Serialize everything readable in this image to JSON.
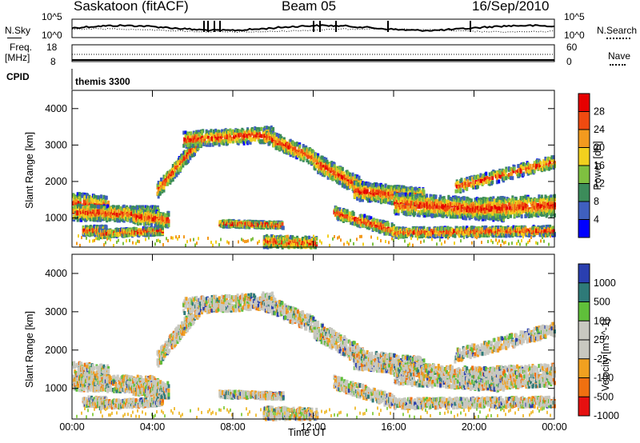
{
  "header": {
    "station": "Saskatoon (fitACF)",
    "beam": "Beam 05",
    "date": "16/Sep/2010"
  },
  "summary_panels": {
    "nsky_label": "N.Sky",
    "nsky_ticks": [
      "10^5",
      "10^0"
    ],
    "nsearch_label": "N.Search",
    "nsearch_ticks": [
      "10^5",
      "10^0"
    ],
    "freq_label": "Freq.",
    "freq_unit": "[MHz]",
    "freq_ticks": [
      "18",
      "8"
    ],
    "nave_label": "Nave",
    "nave_ticks": [
      "60",
      "0"
    ],
    "cpid_label": "CPID",
    "cpid_value": "themis 3300"
  },
  "chart_data": [
    {
      "type": "heatmap",
      "name": "power-panel",
      "xlabel": "",
      "ylabel": "Slant Range [km]",
      "xlim": [
        0,
        24
      ],
      "ylim": [
        200,
        4500
      ],
      "yticks": [
        "4000",
        "3000",
        "2000",
        "1000"
      ],
      "colorbar_label": "Power [dB]",
      "colorbar_ticks": [
        "28",
        "24",
        "20",
        "16",
        "12",
        "8",
        "4"
      ],
      "colorbar_colors": [
        "#0000ff",
        "#3f5fbf",
        "#3c8c5a",
        "#7fc040",
        "#f2d01e",
        "#f39a1e",
        "#ef4a10",
        "#e60000"
      ]
    },
    {
      "type": "heatmap",
      "name": "velocity-panel",
      "xlabel": "Time UT",
      "ylabel": "Slant Range [km]",
      "xlim": [
        0,
        24
      ],
      "ylim": [
        200,
        4500
      ],
      "xticks": [
        "00:00",
        "04:00",
        "08:00",
        "12:00",
        "16:00",
        "20:00",
        "00:00"
      ],
      "yticks": [
        "4000",
        "3000",
        "2000",
        "1000"
      ],
      "colorbar_label": "Velocity [m s^-1]",
      "colorbar_ticks": [
        "1000",
        "500",
        "100",
        "25",
        "-25",
        "-100",
        "-500",
        "-1000"
      ],
      "colorbar_colors": [
        "#2a3fb0",
        "#2e7a78",
        "#5fbf3a",
        "#c8c8c0",
        "#c8c8c0",
        "#f0a020",
        "#f07010",
        "#e61010"
      ]
    }
  ]
}
